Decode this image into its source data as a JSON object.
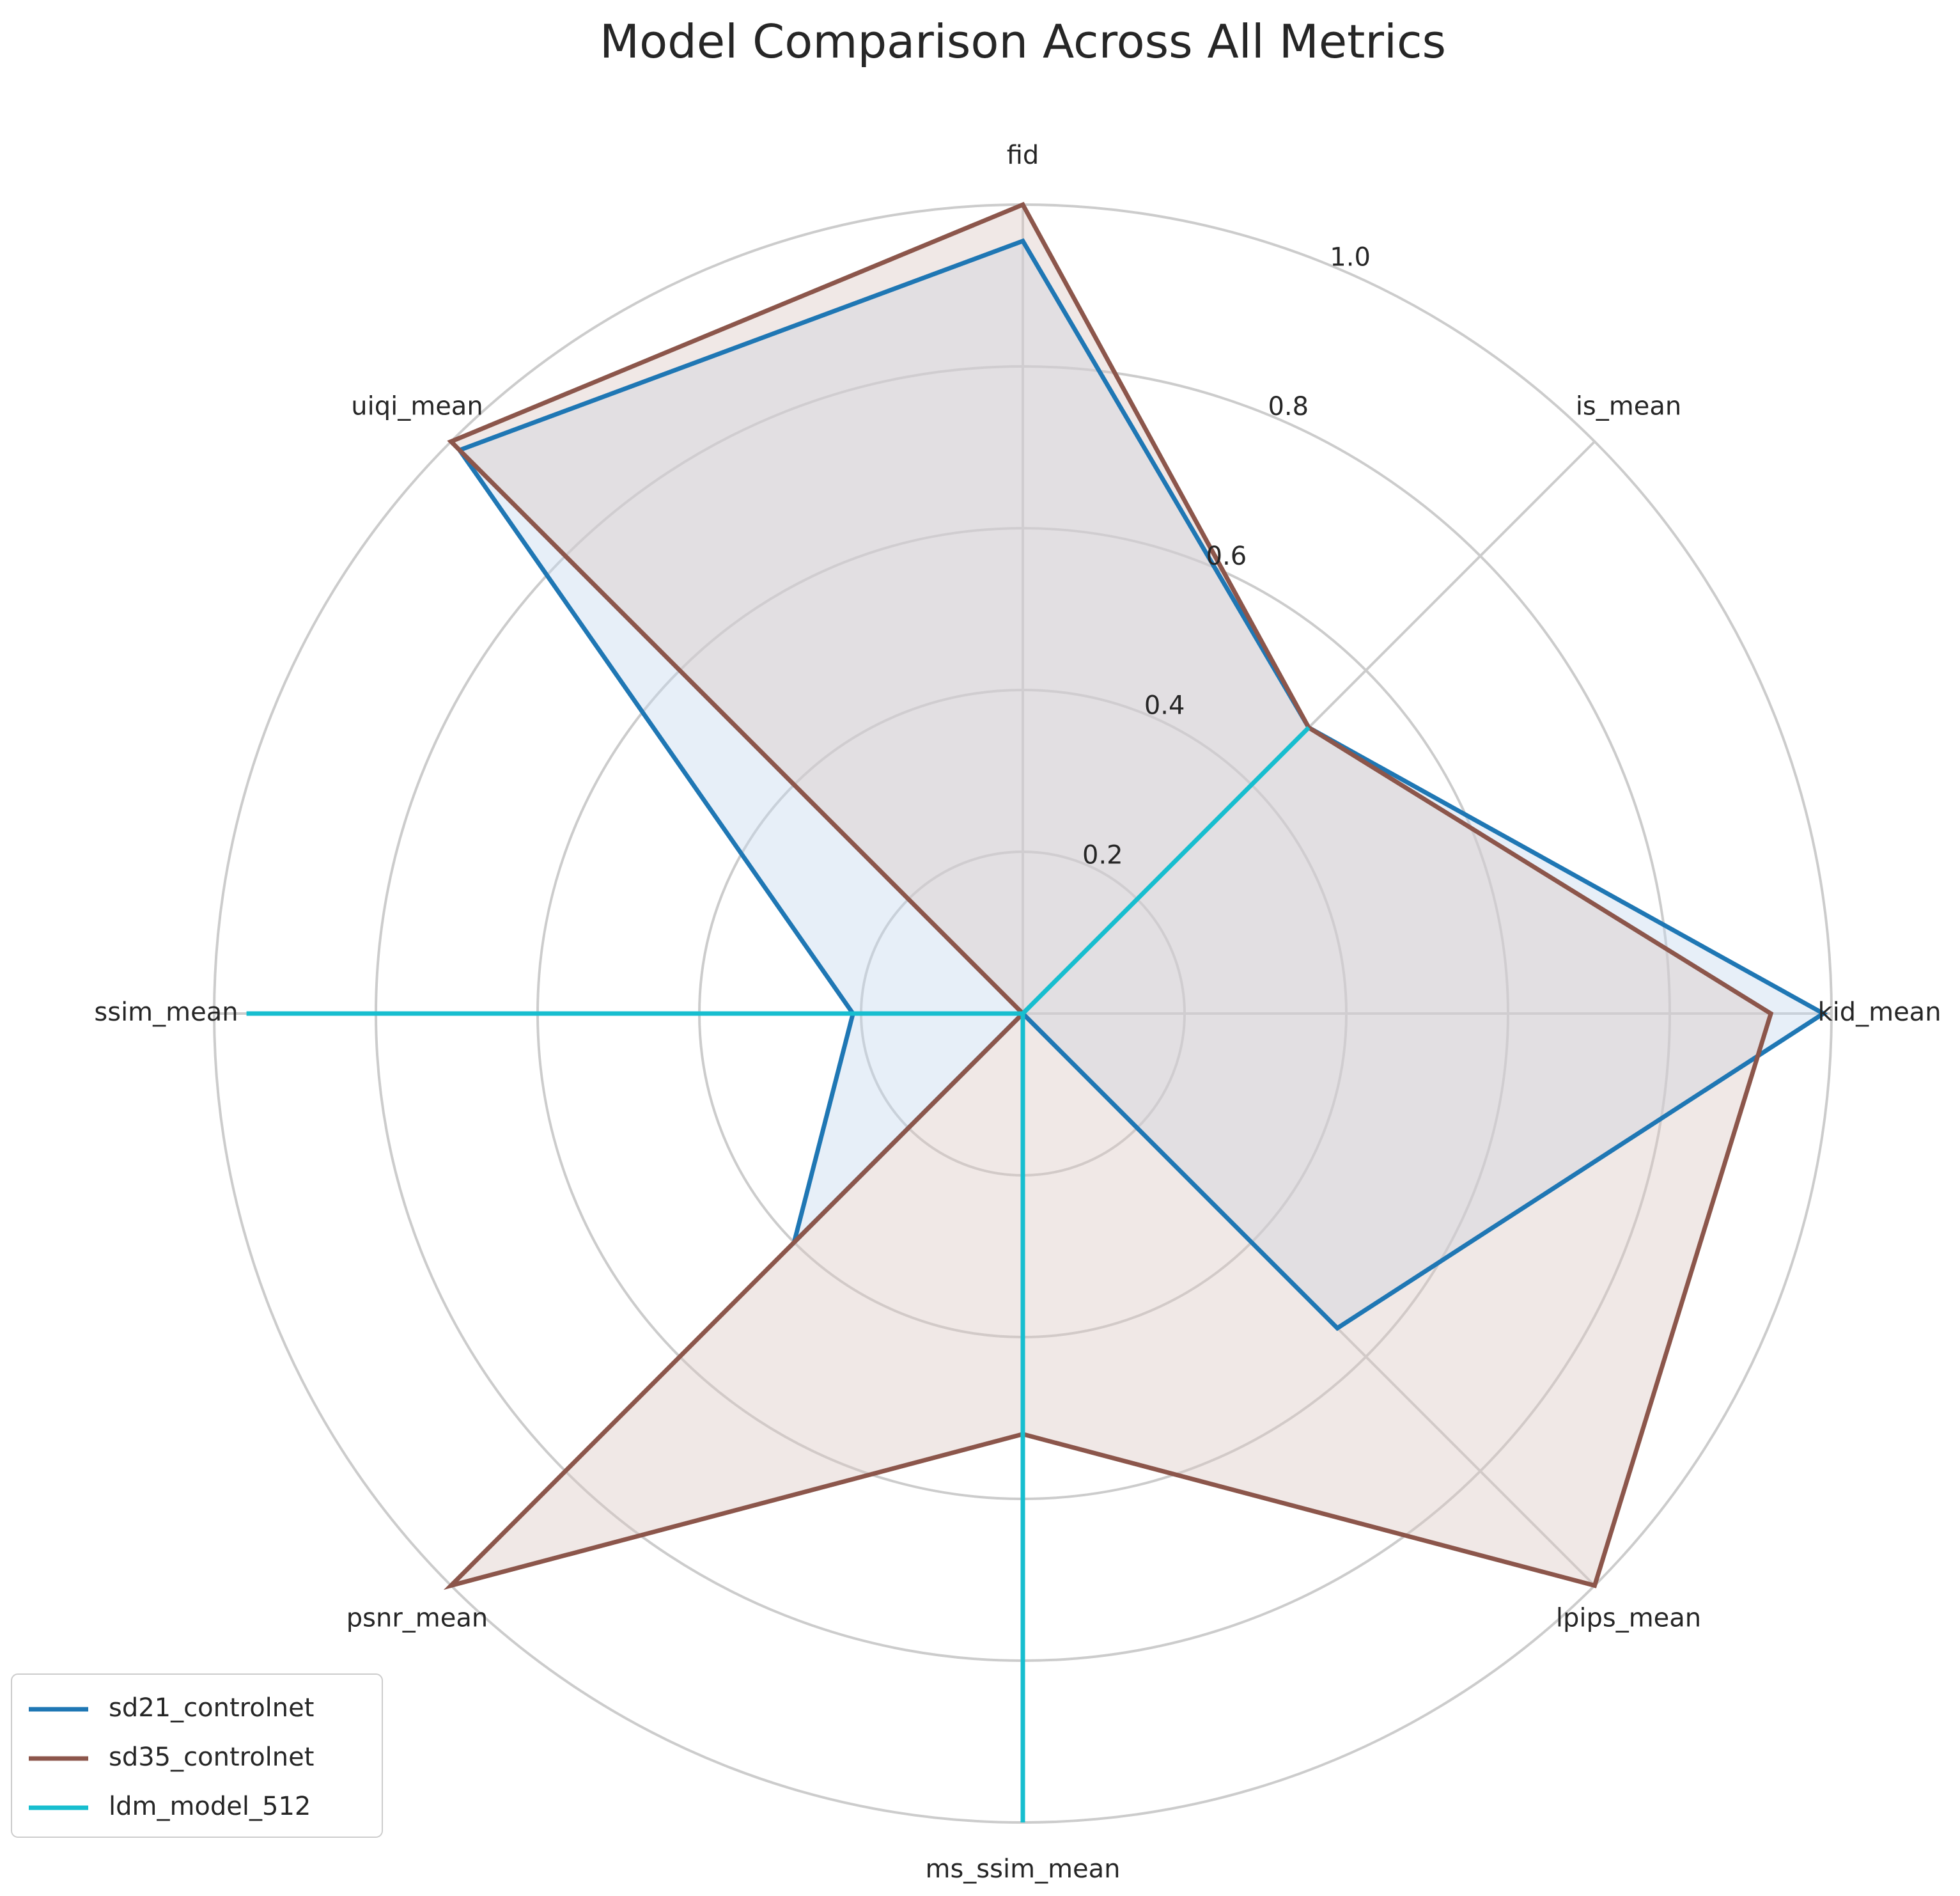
{
  "chart_data": {
    "type": "radar",
    "title": "Model Comparison Across All Metrics",
    "categories": [
      "fid",
      "is_mean",
      "kid_mean",
      "lpips_mean",
      "ms_ssim_mean",
      "psnr_mean",
      "ssim_mean",
      "uiqi_mean"
    ],
    "rlim": [
      0,
      1.0
    ],
    "rticks": [
      0.2,
      0.4,
      0.6,
      0.8,
      1.0
    ],
    "rtick_labels": [
      "0.2",
      "0.4",
      "0.6",
      "0.8",
      "1.0"
    ],
    "grid": true,
    "legend_position": "lower-left",
    "series": [
      {
        "name": "sd21_controlnet",
        "color": "#1f77b4",
        "fill": "#c6d9ee",
        "values": [
          0.955,
          0.5,
          0.99,
          0.55,
          0.0,
          0.4,
          0.21,
          0.985
        ]
      },
      {
        "name": "sd35_controlnet",
        "color": "#8c564b",
        "fill": "#dcc9c4",
        "values": [
          1.0,
          0.5,
          0.925,
          1.0,
          0.52,
          1.0,
          0.0,
          1.0
        ]
      },
      {
        "name": "ldm_model_512",
        "color": "#17becf",
        "fill": "#a6e6ee",
        "values": [
          0.0,
          0.5,
          0.0,
          0.0,
          1.0,
          0.0,
          0.96,
          0.0
        ]
      }
    ]
  }
}
